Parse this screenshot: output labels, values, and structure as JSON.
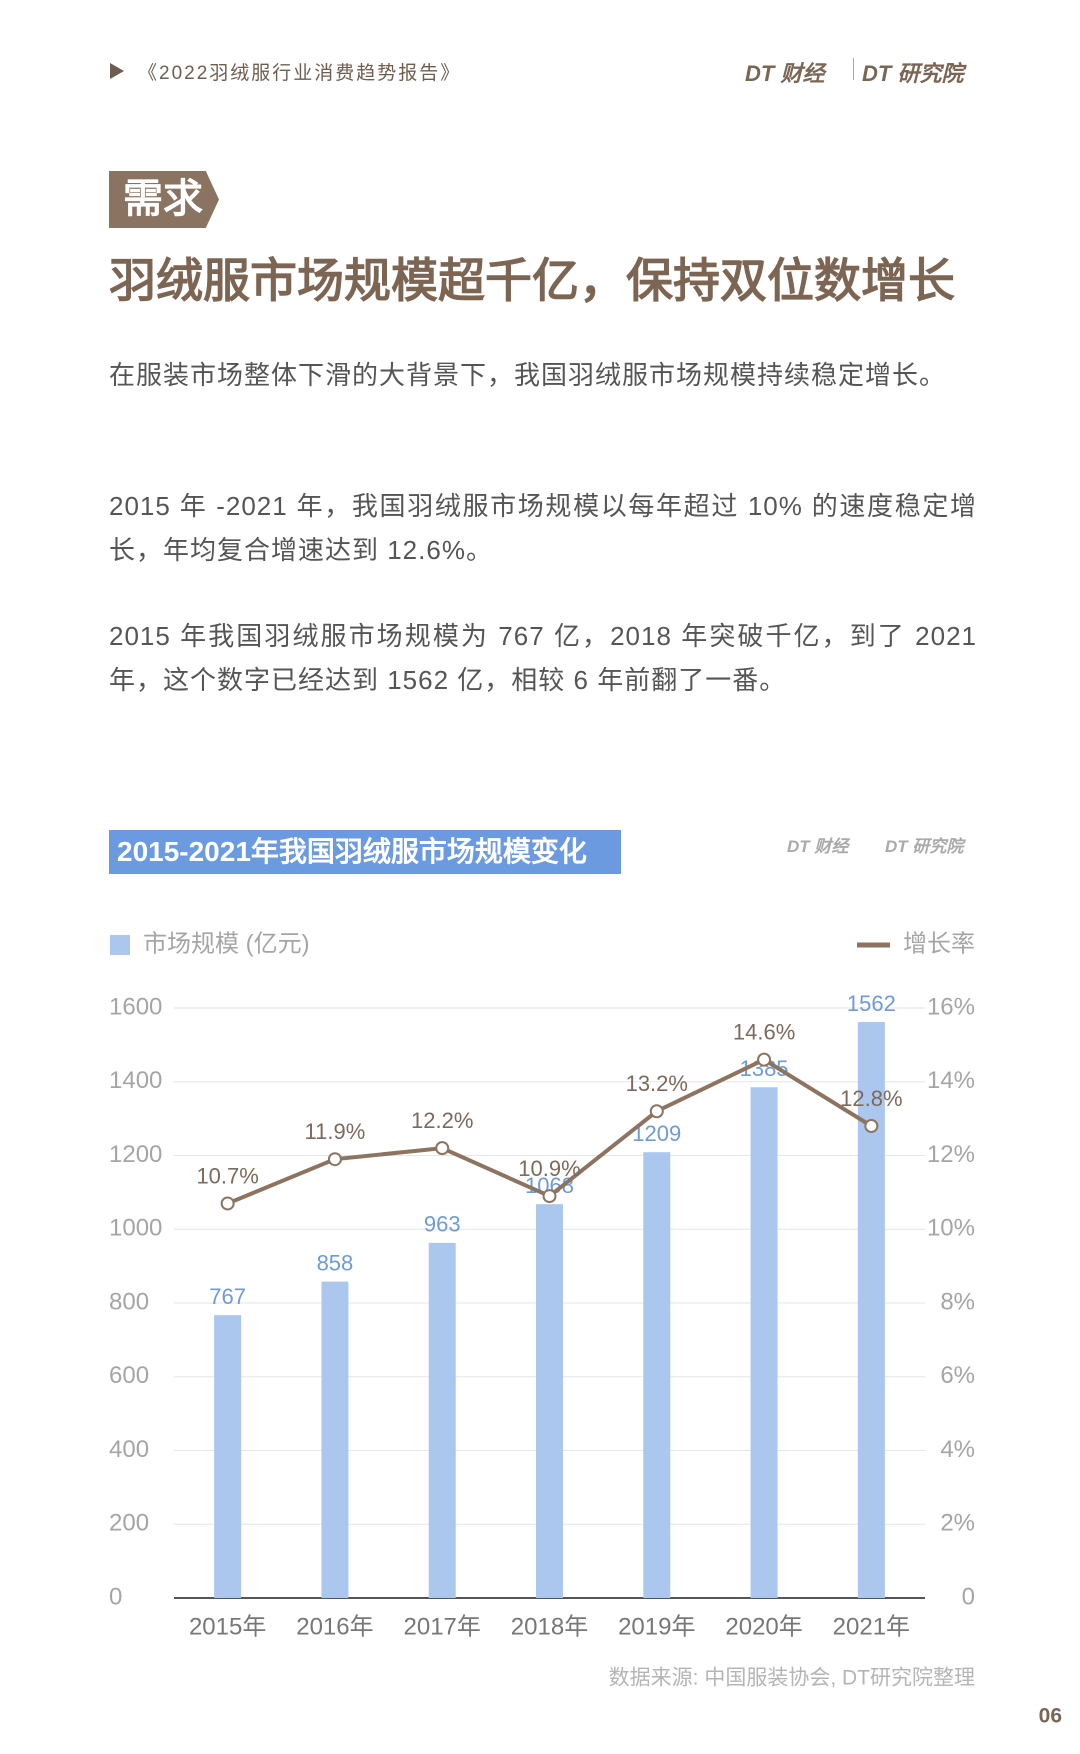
{
  "header": {
    "report": "《2022羽绒服行业消费趋势报告》",
    "logos": [
      "DT 财经",
      "DT 研究院"
    ]
  },
  "section_tag": "需求",
  "title": "羽绒服市场规模超千亿，保持双位数增长",
  "paragraphs": [
    "在服装市场整体下滑的大背景下，我国羽绒服市场规模持续稳定增长。",
    "2015 年 -2021 年，我国羽绒服市场规模以每年超过 10% 的速度稳定增长，年均复合增速达到 12.6%。",
    "2015 年我国羽绒服市场规模为 767 亿，2018 年突破千亿，到了 2021 年，这个数字已经达到 1562 亿，相较 6 年前翻了一番。"
  ],
  "chart_logos": [
    "DT 财经",
    "DT 研究院"
  ],
  "chart_data": {
    "type": "bar_line",
    "title": "2015-2021年我国羽绒服市场规模变化",
    "categories": [
      "2015年",
      "2016年",
      "2017年",
      "2018年",
      "2019年",
      "2020年",
      "2021年"
    ],
    "series": [
      {
        "name": "市场规模 (亿元)",
        "color": "#abc7ee",
        "values": [
          767,
          858,
          963,
          1068,
          1209,
          1385,
          1562
        ]
      },
      {
        "name": "增长率",
        "color": "#8c7461",
        "axis": "y2",
        "values": [
          10.7,
          11.9,
          12.2,
          10.9,
          13.2,
          14.6,
          12.8
        ],
        "value_labels": [
          "10.7%",
          "11.9%",
          "12.2%",
          "10.9%",
          "13.2%",
          "14.6%",
          "12.8%"
        ]
      }
    ],
    "ylim": [
      0,
      1600
    ],
    "yticks": [
      0,
      200,
      400,
      600,
      800,
      1000,
      1200,
      1400,
      1600
    ],
    "y2lim": [
      0,
      16
    ],
    "y2ticks": [
      0,
      {
        "value": 2,
        "label": "2%"
      },
      {
        "value": 4,
        "label": "4%"
      },
      {
        "value": 6,
        "label": "6%"
      },
      {
        "value": 8,
        "label": "8%"
      },
      {
        "value": 10,
        "label": "10%"
      },
      {
        "value": 12,
        "label": "12%"
      },
      {
        "value": 14,
        "label": "14%"
      },
      {
        "value": 16,
        "label": "16%"
      }
    ],
    "grid": true,
    "source": "数据来源: 中国服装协会, DT研究院整理"
  },
  "page_number": "06"
}
